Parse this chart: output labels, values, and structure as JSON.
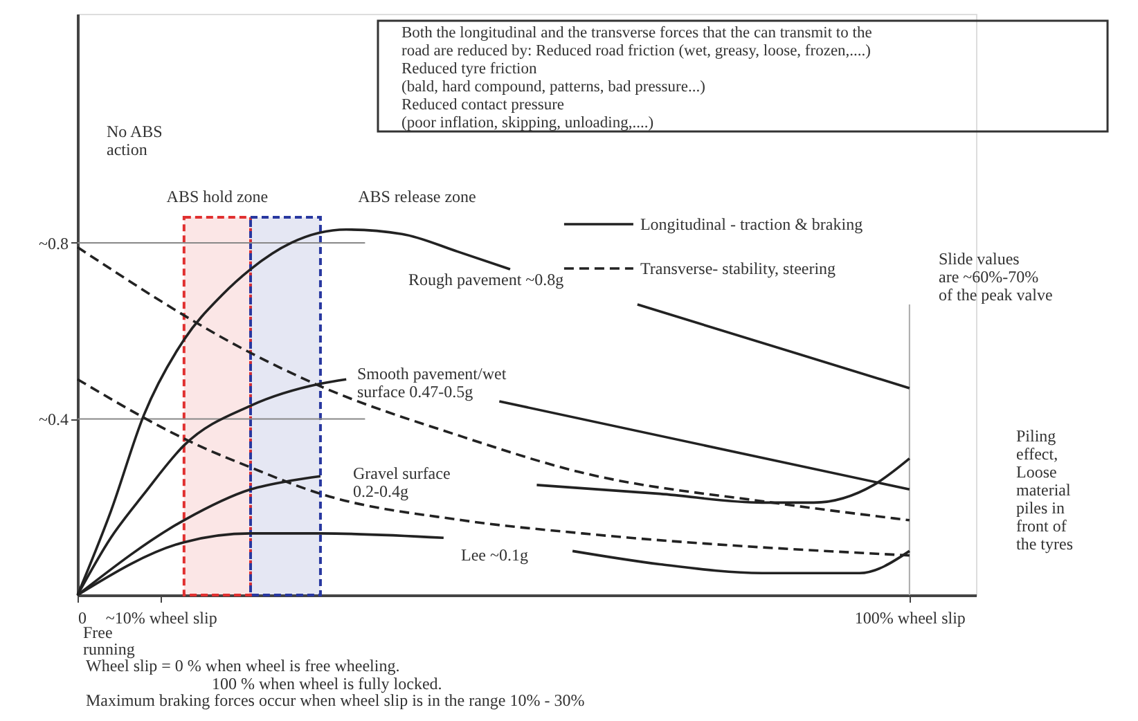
{
  "chart_data": {
    "type": "line",
    "xlim": [
      0,
      108
    ],
    "ylim": [
      0,
      1.32
    ],
    "xticks": [
      0,
      {
        "value": 10,
        "label": "~10% wheel slip"
      },
      {
        "value": 100,
        "label": "100% wheel slip"
      }
    ],
    "yticks": [
      {
        "value": 0.4,
        "label": "~0.4"
      },
      {
        "value": 0.8,
        "label": "~0.8"
      }
    ],
    "grid": false,
    "marker": "none",
    "legend": "top right",
    "series": [
      {
        "name": "Longitudinal - traction & braking",
        "color": "#222222",
        "line_style": "solid",
        "x": [
          0,
          4,
          8,
          12.8,
          17.3,
          20.8,
          25.7,
          32.3,
          39,
          45.7,
          52,
          60,
          67.3,
          100
        ],
        "values": [
          0,
          0.19,
          0.41,
          0.58,
          0.68,
          0.74,
          0.8,
          0.83,
          0.82,
          0.78,
          0.74,
          null,
          0.66,
          0.47
        ]
      },
      {
        "color": "#222222",
        "line_style": "solid",
        "x": [
          0,
          4,
          8,
          12.8,
          20.8,
          29.2,
          32.3,
          40,
          50.7,
          100
        ],
        "values": [
          0,
          0.13,
          0.23,
          0.34,
          0.43,
          0.48,
          0.49,
          null,
          0.44,
          0.24
        ]
      },
      {
        "color": "#222222",
        "line_style": "solid",
        "x": [
          0,
          12.8,
          20.8,
          25.7,
          29.2,
          42,
          55.2,
          70,
          82.3,
          88.5,
          95.7,
          100
        ],
        "values": [
          0,
          0.17,
          0.24,
          0.26,
          0.27,
          null,
          0.25,
          0.23,
          0.21,
          0.21,
          0.25,
          0.31
        ]
      },
      {
        "color": "#222222",
        "line_style": "solid",
        "x": [
          0,
          12.8,
          20.8,
          29.2,
          44,
          52,
          59.5,
          70,
          82.3,
          94,
          100
        ],
        "values": [
          0,
          0.12,
          0.14,
          0.14,
          0.13,
          null,
          0.1,
          0.07,
          0.05,
          0.05,
          0.1
        ]
      },
      {
        "name": "Transverse- stability, steering",
        "color": "#222222",
        "line_style": "dashed",
        "x": [
          0,
          20.8,
          28.5,
          46.2,
          60.2,
          83.5,
          100
        ],
        "values": [
          0.79,
          0.55,
          0.48,
          0.36,
          0.28,
          0.21,
          0.17
        ]
      },
      {
        "color": "#222222",
        "line_style": "dashed",
        "x": [
          0,
          14.5,
          20.8,
          29.2,
          46.2,
          60.7,
          100
        ],
        "values": [
          0.49,
          0.34,
          0.29,
          0.23,
          0.17,
          0.14,
          0.09
        ]
      }
    ],
    "ref_lines": [
      {
        "axis": "y",
        "value": 0.8,
        "color": "#888888"
      },
      {
        "axis": "y",
        "value": 0.4,
        "color": "#888888"
      },
      {
        "axis": "x",
        "value": 100,
        "color": "#aaaaaa"
      }
    ],
    "bands": [
      {
        "axis": "x",
        "from": 12.8,
        "to": 20.8,
        "label": "ABS hold zone",
        "color": "#e03030"
      },
      {
        "axis": "x",
        "from": 20.8,
        "to": 29.2,
        "label": "ABS release zone",
        "color": "#2838a0"
      }
    ],
    "annotations": [
      "Both the longitudinal and the transverse forces that the can transmit to the\nroad are reduced by: Reduced road friction (wet, greasy, loose, frozen,....)\nReduced tyre friction\n(bald, hard compound, patterns, bad pressure...)\nReduced contact pressure\n(poor inflation, skipping, unloading,....)",
      "No ABS\naction",
      "Slide values\nare ~60%-70%\nof the peak valve",
      "Piling\neffect,\nLoose\nmaterial\npiles in\nfront of\nthe tyres",
      "Free\nrunning",
      "Wheel slip = 0 % when wheel is free wheeling.",
      "100 % when wheel is fully locked.",
      "Maximum braking forces occur when wheel slip is in the range 10% - 30%",
      "Rough pavement ~0.8g",
      "Smooth pavement/wet\nsurface 0.47-0.5g",
      "Gravel surface\n0.2-0.4g",
      "Lee ~0.1g"
    ]
  }
}
